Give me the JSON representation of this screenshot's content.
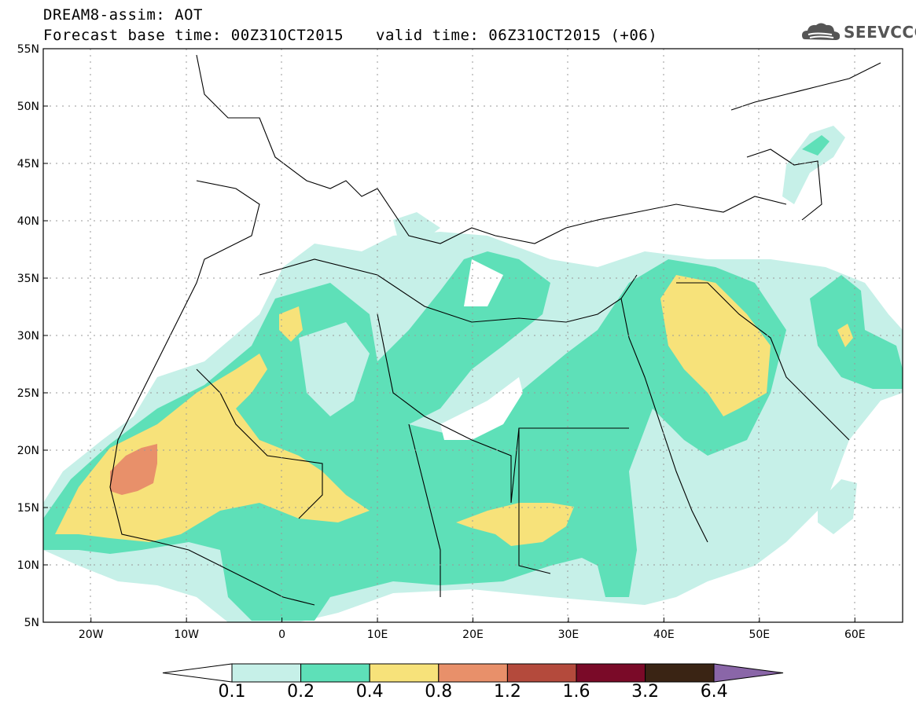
{
  "header": {
    "title": "DREAM8-assim: AOT",
    "base_time": "Forecast base time: 00Z31OCT2015",
    "valid_time": "valid time: 06Z31OCT2015 (+06)",
    "logo_text": "SEEVCCC"
  },
  "axes": {
    "lat_labels": [
      "55N",
      "50N",
      "45N",
      "40N",
      "35N",
      "30N",
      "25N",
      "20N",
      "15N",
      "10N",
      "5N"
    ],
    "lon_labels": [
      "20W",
      "10W",
      "0",
      "10E",
      "20E",
      "30E",
      "40E",
      "50E",
      "60E"
    ],
    "lon_range": [
      -25,
      65
    ],
    "lat_range": [
      5,
      55
    ]
  },
  "legend": {
    "labels": [
      "0.1",
      "0.2",
      "0.4",
      "0.8",
      "1.2",
      "1.6",
      "3.2",
      "6.4"
    ],
    "colors": [
      "#c6f0e8",
      "#5ee0b8",
      "#f7e27a",
      "#e8906a",
      "#b44a3c",
      "#7a0a28",
      "#3a2414",
      "#8a66a8"
    ],
    "under_color": "#ffffff",
    "over_color": "#8a66a8"
  }
}
